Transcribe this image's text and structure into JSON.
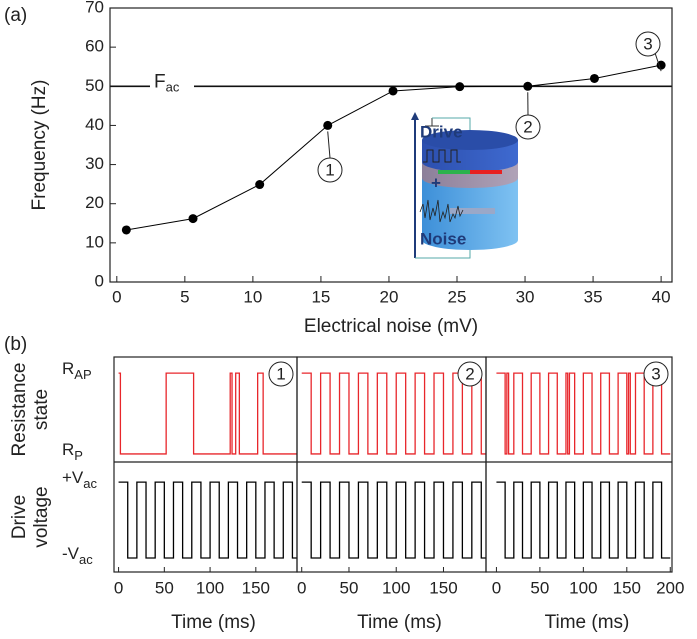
{
  "chart_data": [
    {
      "type": "line",
      "label": "(a)",
      "x_label": "Electrical noise (mV)",
      "y_label": "Frequency (Hz)",
      "x": [
        0.7,
        5.6,
        10.5,
        15.5,
        20.3,
        25.2,
        30.2,
        35.1,
        40.0
      ],
      "values": [
        13.3,
        16.2,
        24.9,
        40.0,
        48.8,
        49.9,
        50.0,
        52.0,
        55.4
      ],
      "color": "#000000",
      "xlim": [
        -0.5,
        40.8
      ],
      "ylim": [
        0,
        70
      ],
      "xticks": [
        0,
        5,
        10,
        15,
        20,
        25,
        30,
        35,
        40
      ],
      "yticks": [
        0,
        10,
        20,
        30,
        40,
        50,
        60,
        70
      ],
      "reference_line": {
        "value": 50,
        "label": "F",
        "sub": "ac"
      },
      "annotations": [
        {
          "label": "1"
        },
        {
          "label": "2"
        },
        {
          "label": "3"
        }
      ],
      "inset": {
        "drive": "Drive",
        "plus": "+",
        "noise": "Noise"
      }
    },
    {
      "type": "step",
      "label": "(b)",
      "resistance_label": [
        "Resistance",
        "state"
      ],
      "drive_label": [
        "Drive",
        "voltage"
      ],
      "resistance_color": "#e8262b",
      "drive_color": "#000000",
      "resistance_ylim": [
        -0.1,
        1.2
      ],
      "drive_ylim": [
        -1.37,
        1.53
      ],
      "resistance_yticks": [
        {
          "value": 1,
          "label": "R",
          "sub": "AP"
        },
        {
          "value": 0,
          "label": "R",
          "sub": "P"
        }
      ],
      "drive_yticks": [
        {
          "value": 1,
          "label": "+V",
          "sub": "ac"
        },
        {
          "value": -1,
          "label": "-V",
          "sub": "ac"
        }
      ],
      "panels": [
        {
          "marker": "1",
          "x_label": "Time (ms)",
          "xlim": [
            -5,
            195
          ],
          "xticks": [
            0,
            50,
            100,
            150
          ],
          "resistance": {
            "x": [
              0,
              2,
              52,
              82,
              122,
              124,
              128,
              132,
              152,
              158,
              195
            ],
            "values": [
              1,
              0,
              1,
              0,
              1,
              0,
              1,
              0,
              1,
              0,
              0
            ]
          },
          "drive": {
            "x": [
              0,
              10,
              20,
              30,
              40,
              50,
              60,
              70,
              80,
              90,
              100,
              110,
              120,
              130,
              140,
              150,
              160,
              170,
              180,
              190,
              195
            ],
            "values": [
              1,
              -1,
              1,
              -1,
              1,
              -1,
              1,
              -1,
              1,
              -1,
              1,
              -1,
              1,
              -1,
              1,
              -1,
              1,
              -1,
              1,
              -1,
              -1
            ]
          }
        },
        {
          "marker": "2",
          "x_label": "Time (ms)",
          "xlim": [
            -5,
            195
          ],
          "xticks": [
            0,
            50,
            100,
            150
          ],
          "resistance": {
            "x": [
              0,
              10,
              20,
              30,
              40,
              50,
              60,
              70,
              80,
              90,
              100,
              110,
              120,
              130,
              140,
              150,
              160,
              170,
              180,
              190,
              195
            ],
            "values": [
              1,
              0,
              1,
              0,
              1,
              0,
              1,
              0,
              1,
              0,
              1,
              0,
              1,
              0,
              1,
              0,
              1,
              0,
              1,
              0,
              0
            ]
          },
          "drive": {
            "x": [
              0,
              10,
              20,
              30,
              40,
              50,
              60,
              70,
              80,
              90,
              100,
              110,
              120,
              130,
              140,
              150,
              160,
              170,
              180,
              190,
              195
            ],
            "values": [
              1,
              -1,
              1,
              -1,
              1,
              -1,
              1,
              -1,
              1,
              -1,
              1,
              -1,
              1,
              -1,
              1,
              -1,
              1,
              -1,
              1,
              -1,
              -1
            ]
          }
        },
        {
          "marker": "3",
          "x_label": "Time (ms)",
          "xlim": [
            -12,
            202
          ],
          "xticks": [
            0,
            50,
            100,
            150,
            200
          ],
          "resistance": {
            "x": [
              0,
              10,
              12,
              14,
              20,
              30,
              40,
              50,
              60,
              70,
              80,
              82,
              84,
              90,
              100,
              110,
              120,
              130,
              140,
              150,
              152,
              154,
              160,
              170,
              180,
              190,
              200
            ],
            "values": [
              1,
              0,
              1,
              0,
              1,
              0,
              1,
              0,
              1,
              0,
              1,
              0,
              1,
              0,
              1,
              0,
              1,
              0,
              1,
              0,
              1,
              0,
              1,
              0,
              1,
              0,
              0
            ]
          },
          "drive": {
            "x": [
              0,
              10,
              20,
              30,
              40,
              50,
              60,
              70,
              80,
              90,
              100,
              110,
              120,
              130,
              140,
              150,
              160,
              170,
              180,
              190,
              200
            ],
            "values": [
              1,
              -1,
              1,
              -1,
              1,
              -1,
              1,
              -1,
              1,
              -1,
              1,
              -1,
              1,
              -1,
              1,
              -1,
              1,
              -1,
              1,
              -1,
              -1
            ]
          }
        }
      ]
    }
  ]
}
